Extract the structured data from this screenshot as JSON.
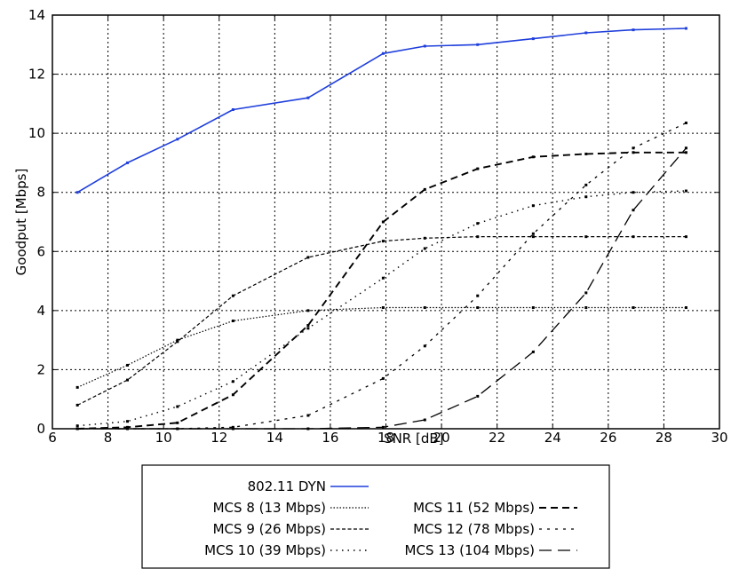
{
  "chart_data": {
    "type": "line",
    "title": "",
    "xlabel": "SNR [dB]",
    "ylabel": "Goodput [Mbps]",
    "xlim": [
      6,
      30
    ],
    "ylim": [
      0,
      14
    ],
    "xticks": [
      6,
      8,
      10,
      12,
      14,
      16,
      18,
      20,
      22,
      24,
      26,
      28,
      30
    ],
    "yticks": [
      0,
      2,
      4,
      6,
      8,
      10,
      12,
      14
    ],
    "grid": true,
    "legend_position": "bottom-center",
    "series": [
      {
        "name": "802.11 DYN",
        "color": "#1f3fdc",
        "x": [
          6.9,
          8.7,
          10.5,
          12.5,
          15.2,
          17.9,
          19.4,
          21.3,
          23.3,
          25.2,
          26.9,
          28.8
        ],
        "y": [
          8.0,
          9.0,
          9.8,
          10.8,
          11.2,
          12.7,
          12.95,
          13.0,
          13.2,
          13.4,
          13.5,
          13.55
        ]
      },
      {
        "name": "MCS 8 (13 Mbps)",
        "color": "#000000",
        "x": [
          6.9,
          8.7,
          10.5,
          12.5,
          15.2,
          17.9,
          19.4,
          21.3,
          23.3,
          25.2,
          26.9,
          28.8
        ],
        "y": [
          1.4,
          2.15,
          3.0,
          3.65,
          4.0,
          4.1,
          4.1,
          4.1,
          4.1,
          4.1,
          4.1,
          4.1
        ]
      },
      {
        "name": "MCS 9 (26 Mbps)",
        "color": "#000000",
        "x": [
          6.9,
          8.7,
          10.5,
          12.5,
          15.2,
          17.9,
          19.4,
          21.3,
          23.3,
          25.2,
          26.9,
          28.8
        ],
        "y": [
          0.8,
          1.65,
          2.95,
          4.5,
          5.8,
          6.35,
          6.45,
          6.5,
          6.5,
          6.5,
          6.5,
          6.5
        ]
      },
      {
        "name": "MCS 10 (39 Mbps)",
        "color": "#000000",
        "x": [
          6.9,
          8.7,
          10.5,
          12.5,
          15.2,
          17.9,
          19.4,
          21.3,
          23.3,
          25.2,
          26.9,
          28.8
        ],
        "y": [
          0.1,
          0.25,
          0.75,
          1.6,
          3.4,
          5.1,
          6.1,
          6.95,
          7.55,
          7.85,
          8.0,
          8.05
        ]
      },
      {
        "name": "MCS 11 (52 Mbps)",
        "color": "#000000",
        "x": [
          6.9,
          8.7,
          10.5,
          12.5,
          15.2,
          17.9,
          19.4,
          21.3,
          23.3,
          25.2,
          26.9,
          28.8
        ],
        "y": [
          0.0,
          0.05,
          0.2,
          1.15,
          3.5,
          7.0,
          8.1,
          8.8,
          9.2,
          9.3,
          9.35,
          9.35
        ]
      },
      {
        "name": "MCS 12 (78 Mbps)",
        "color": "#000000",
        "x": [
          6.9,
          8.7,
          10.5,
          12.5,
          15.2,
          17.9,
          19.4,
          21.3,
          23.3,
          25.2,
          26.9,
          28.8
        ],
        "y": [
          0.0,
          0.0,
          0.0,
          0.05,
          0.45,
          1.7,
          2.8,
          4.5,
          6.6,
          8.25,
          9.5,
          10.35
        ]
      },
      {
        "name": "MCS 13 (104 Mbps)",
        "color": "#000000",
        "x": [
          6.9,
          8.7,
          10.5,
          12.5,
          15.2,
          17.9,
          19.4,
          21.3,
          23.3,
          25.2,
          26.9,
          28.8
        ],
        "y": [
          0.0,
          0.0,
          0.0,
          0.0,
          0.0,
          0.05,
          0.3,
          1.1,
          2.6,
          4.6,
          7.4,
          9.5
        ]
      }
    ]
  }
}
